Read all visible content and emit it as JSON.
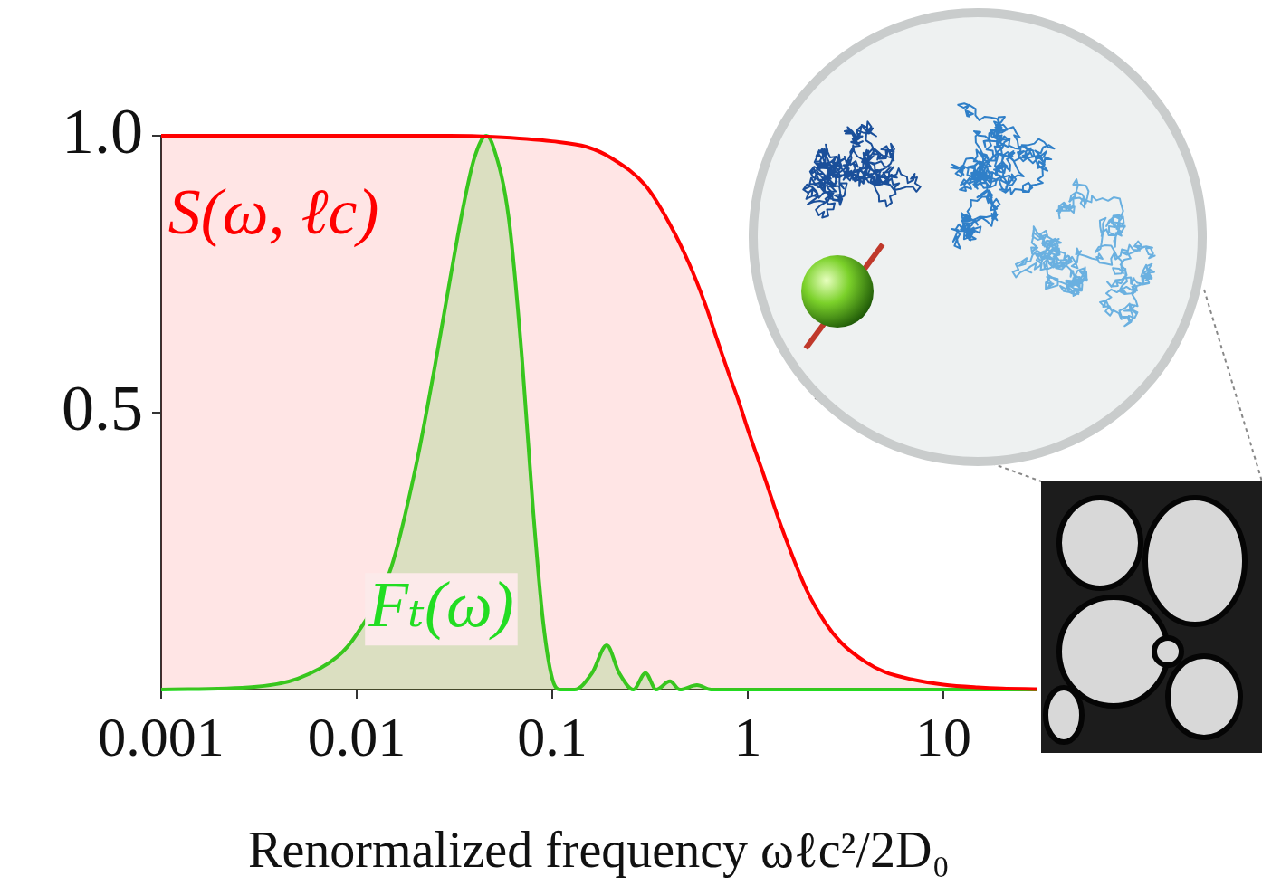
{
  "chart_data": {
    "type": "line",
    "x_label": "Renormalized frequency ωℓc²/2D₀",
    "log": "x",
    "grid": false,
    "xlim": [
      0.001,
      30
    ],
    "xticks": [
      0.001,
      0.01,
      0.1,
      1,
      10
    ],
    "ylim": [
      0,
      1
    ],
    "yticks": [
      0.5,
      {
        "value": 1,
        "label": "1.0"
      }
    ],
    "series": [
      {
        "name": "S(ω, ℓc)",
        "color": "#ff0000",
        "x": [
          0.001,
          0.01,
          0.03,
          0.05,
          0.1,
          0.15,
          0.2,
          0.3,
          0.4,
          0.5,
          0.6,
          0.7,
          0.8,
          0.9,
          1,
          1.2,
          1.5,
          2,
          2.5,
          3,
          4,
          5,
          7,
          10,
          15,
          20,
          30
        ],
        "values": [
          1,
          1,
          1,
          0.998,
          0.99,
          0.98,
          0.96,
          0.91,
          0.84,
          0.77,
          0.7,
          0.63,
          0.57,
          0.52,
          0.47,
          0.39,
          0.29,
          0.18,
          0.12,
          0.085,
          0.05,
          0.032,
          0.018,
          0.009,
          0.004,
          0.002,
          0.001
        ]
      },
      {
        "name": "Fₜ(ω)",
        "color": "#22dd22",
        "x": [
          0.001,
          0.003,
          0.005,
          0.008,
          0.01,
          0.015,
          0.02,
          0.025,
          0.03,
          0.035,
          0.04,
          0.046,
          0.05,
          0.06,
          0.07,
          0.08,
          0.09,
          0.1,
          0.11,
          0.13,
          0.16,
          0.19,
          0.22,
          0.26,
          0.3,
          0.34,
          0.4,
          0.45,
          0.55,
          0.65,
          1,
          30
        ],
        "values": [
          0,
          0.005,
          0.02,
          0.06,
          0.1,
          0.22,
          0.4,
          0.58,
          0.74,
          0.87,
          0.96,
          1,
          0.98,
          0.85,
          0.6,
          0.32,
          0.12,
          0.02,
          0,
          0,
          0.03,
          0.08,
          0.03,
          0,
          0.03,
          0,
          0.015,
          0,
          0.008,
          0,
          0,
          0
        ]
      }
    ]
  }
}
